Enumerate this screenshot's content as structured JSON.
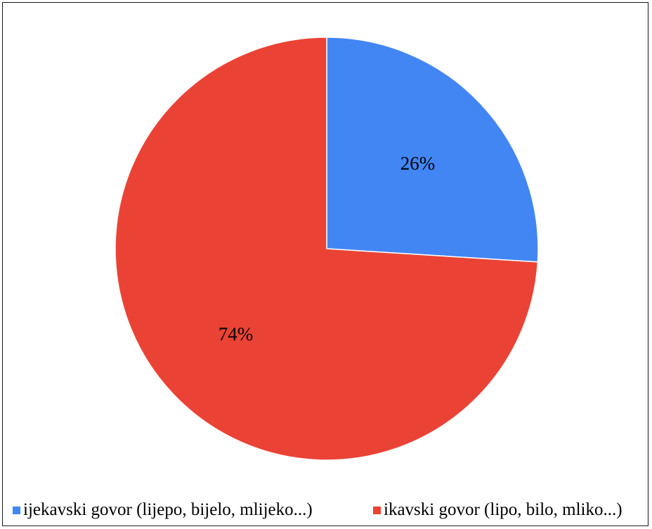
{
  "chart_data": {
    "type": "pie",
    "title": "",
    "slices": [
      {
        "label": "ijekavski govor (lijepo, bijelo, mlijeko...)",
        "value": 26,
        "display": "26%",
        "color": "#4286F4"
      },
      {
        "label": "ikavski govor (lipo, bilo, mliko...)",
        "value": 74,
        "display": "74%",
        "color": "#EA4335"
      }
    ],
    "legend_position": "bottom"
  }
}
